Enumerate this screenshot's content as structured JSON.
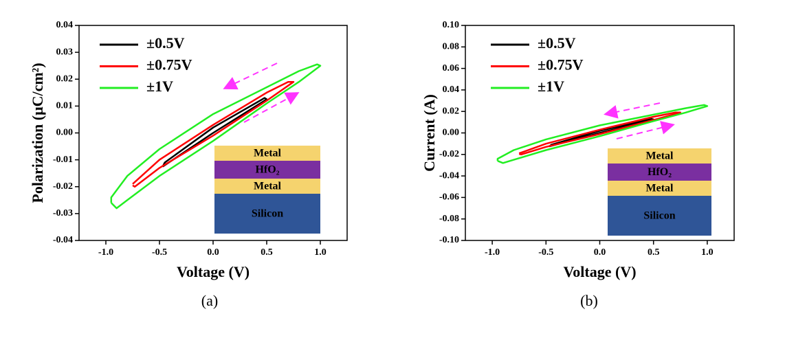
{
  "chart_data": [
    {
      "type": "line",
      "caption": "(a)",
      "x_label": "Voltage (V)",
      "y_label": "Polarization (μC/cm²)",
      "xlim": [
        -1.25,
        1.25
      ],
      "ylim": [
        -0.04,
        0.04
      ],
      "xticks": [
        {
          "value": -1,
          "label": "-1.0"
        },
        -0.5,
        {
          "value": 0,
          "label": "0.0"
        },
        0.5,
        {
          "value": 1,
          "label": "1.0"
        }
      ],
      "yticks": [
        -0.04,
        -0.03,
        -0.02,
        -0.01,
        {
          "value": 0,
          "label": "0.00"
        },
        0.01,
        0.02,
        0.03,
        0.04
      ],
      "legend": "upper left",
      "grid": false,
      "inset_layers": [
        "Metal",
        "HfO₂",
        "Metal",
        "Silicon"
      ],
      "series": [
        {
          "name": "±0.5V",
          "color": "#000000",
          "x": [
            -0.47,
            0,
            0.5,
            0.48,
            0,
            -0.45,
            -0.47
          ],
          "values": [
            -0.0125,
            0,
            0.0125,
            0.013,
            0.002,
            -0.011,
            -0.0125
          ]
        },
        {
          "name": "±0.75V",
          "color": "#ff0000",
          "x": [
            -0.75,
            -0.73,
            -0.5,
            0,
            0.5,
            0.75,
            0.7,
            0.5,
            0,
            -0.5,
            -0.75
          ],
          "values": [
            -0.0195,
            -0.02,
            -0.013,
            -0.001,
            0.012,
            0.019,
            0.019,
            0.015,
            0.003,
            -0.01,
            -0.019
          ]
        },
        {
          "name": "±1V",
          "color": "#22ee22",
          "x": [
            -0.95,
            -0.9,
            -0.8,
            -0.5,
            0,
            0.5,
            0.8,
            1,
            0.97,
            0.8,
            0.5,
            0,
            -0.5,
            -0.8,
            -0.95,
            -0.95
          ],
          "values": [
            -0.026,
            -0.028,
            -0.025,
            -0.016,
            -0.003,
            0.011,
            0.019,
            0.025,
            0.0255,
            0.023,
            0.017,
            0.007,
            -0.006,
            -0.016,
            -0.024,
            -0.026
          ]
        }
      ]
    },
    {
      "type": "line",
      "caption": "(b)",
      "x_label": "Voltage (V)",
      "y_label": "Current (A)",
      "xlim": [
        -1.25,
        1.25
      ],
      "ylim": [
        -0.1,
        0.1
      ],
      "xticks": [
        {
          "value": -1,
          "label": "-1.0"
        },
        -0.5,
        {
          "value": 0,
          "label": "0.0"
        },
        0.5,
        {
          "value": 1,
          "label": "1.0"
        }
      ],
      "yticks": [
        {
          "value": -0.1,
          "label": "-0.10"
        },
        -0.08,
        -0.06,
        -0.04,
        -0.02,
        {
          "value": 0,
          "label": "0.00"
        },
        0.02,
        0.04,
        0.06,
        0.08,
        {
          "value": 0.1,
          "label": "0.10"
        }
      ],
      "legend": "upper left",
      "grid": false,
      "inset_layers": [
        "Metal",
        "HfO₂",
        "Metal",
        "Silicon"
      ],
      "series": [
        {
          "name": "±0.5V",
          "color": "#000000",
          "x": [
            -0.47,
            0,
            0.5,
            0.48,
            0,
            -0.45,
            -0.47
          ],
          "values": [
            -0.0125,
            0,
            0.0125,
            0.013,
            0.002,
            -0.011,
            -0.0125
          ]
        },
        {
          "name": "±0.75V",
          "color": "#ff0000",
          "x": [
            -0.75,
            -0.73,
            -0.5,
            0,
            0.5,
            0.75,
            0.7,
            0.5,
            0,
            -0.5,
            -0.75
          ],
          "values": [
            -0.0195,
            -0.02,
            -0.013,
            -0.001,
            0.012,
            0.019,
            0.019,
            0.015,
            0.003,
            -0.01,
            -0.019
          ]
        },
        {
          "name": "±1V",
          "color": "#22ee22",
          "x": [
            -0.95,
            -0.9,
            -0.8,
            -0.5,
            0,
            0.5,
            0.8,
            1,
            0.97,
            0.8,
            0.5,
            0,
            -0.5,
            -0.8,
            -0.95,
            -0.95
          ],
          "values": [
            -0.026,
            -0.028,
            -0.025,
            -0.016,
            -0.003,
            0.011,
            0.019,
            0.025,
            0.026,
            0.023,
            0.017,
            0.007,
            -0.006,
            -0.016,
            -0.024,
            -0.026
          ]
        }
      ]
    }
  ]
}
